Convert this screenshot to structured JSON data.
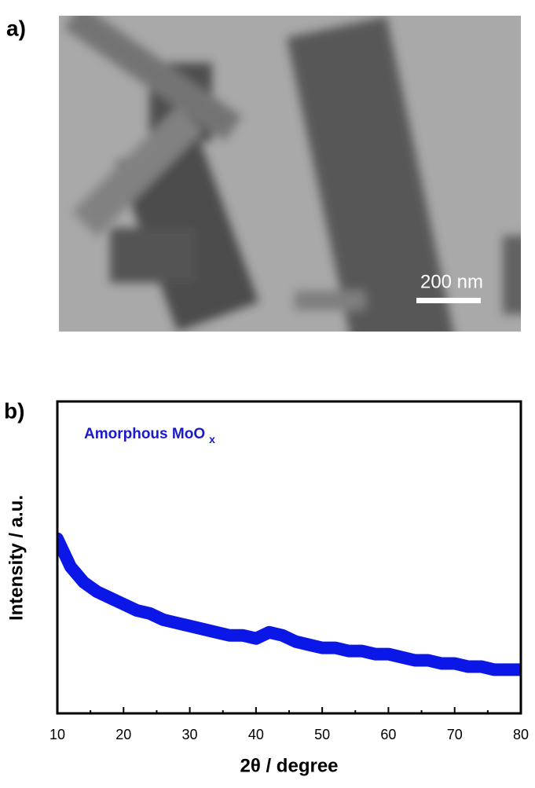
{
  "figure": {
    "panel_a_label": "a)",
    "scale_bar_label": "200 nm",
    "panel_b_label": "b)"
  },
  "chart_data": {
    "type": "line",
    "x_label": "2θ / degree",
    "y_label": "Intensity / a.u.",
    "annotation": {
      "text": "Amorphous MoO",
      "subscript": "x"
    },
    "color": "#0b17e6",
    "x": [
      10,
      12,
      14,
      16,
      18,
      20,
      22,
      24,
      26,
      28,
      30,
      32,
      34,
      36,
      38,
      40,
      42,
      44,
      46,
      48,
      50,
      52,
      54,
      56,
      58,
      60,
      62,
      64,
      66,
      68,
      70,
      72,
      74,
      76,
      78,
      80
    ],
    "values": [
      56,
      47,
      42,
      39,
      37,
      35,
      33,
      32,
      30,
      29,
      28,
      27,
      26,
      25,
      25,
      24,
      26,
      25,
      23,
      22,
      21,
      21,
      20,
      20,
      19,
      19,
      18,
      17,
      17,
      16,
      16,
      15,
      15,
      14,
      14,
      14
    ],
    "xlim": [
      10,
      80
    ],
    "xticks": [
      10,
      20,
      30,
      40,
      50,
      60,
      70,
      80
    ],
    "ylim": [
      0,
      100
    ]
  }
}
